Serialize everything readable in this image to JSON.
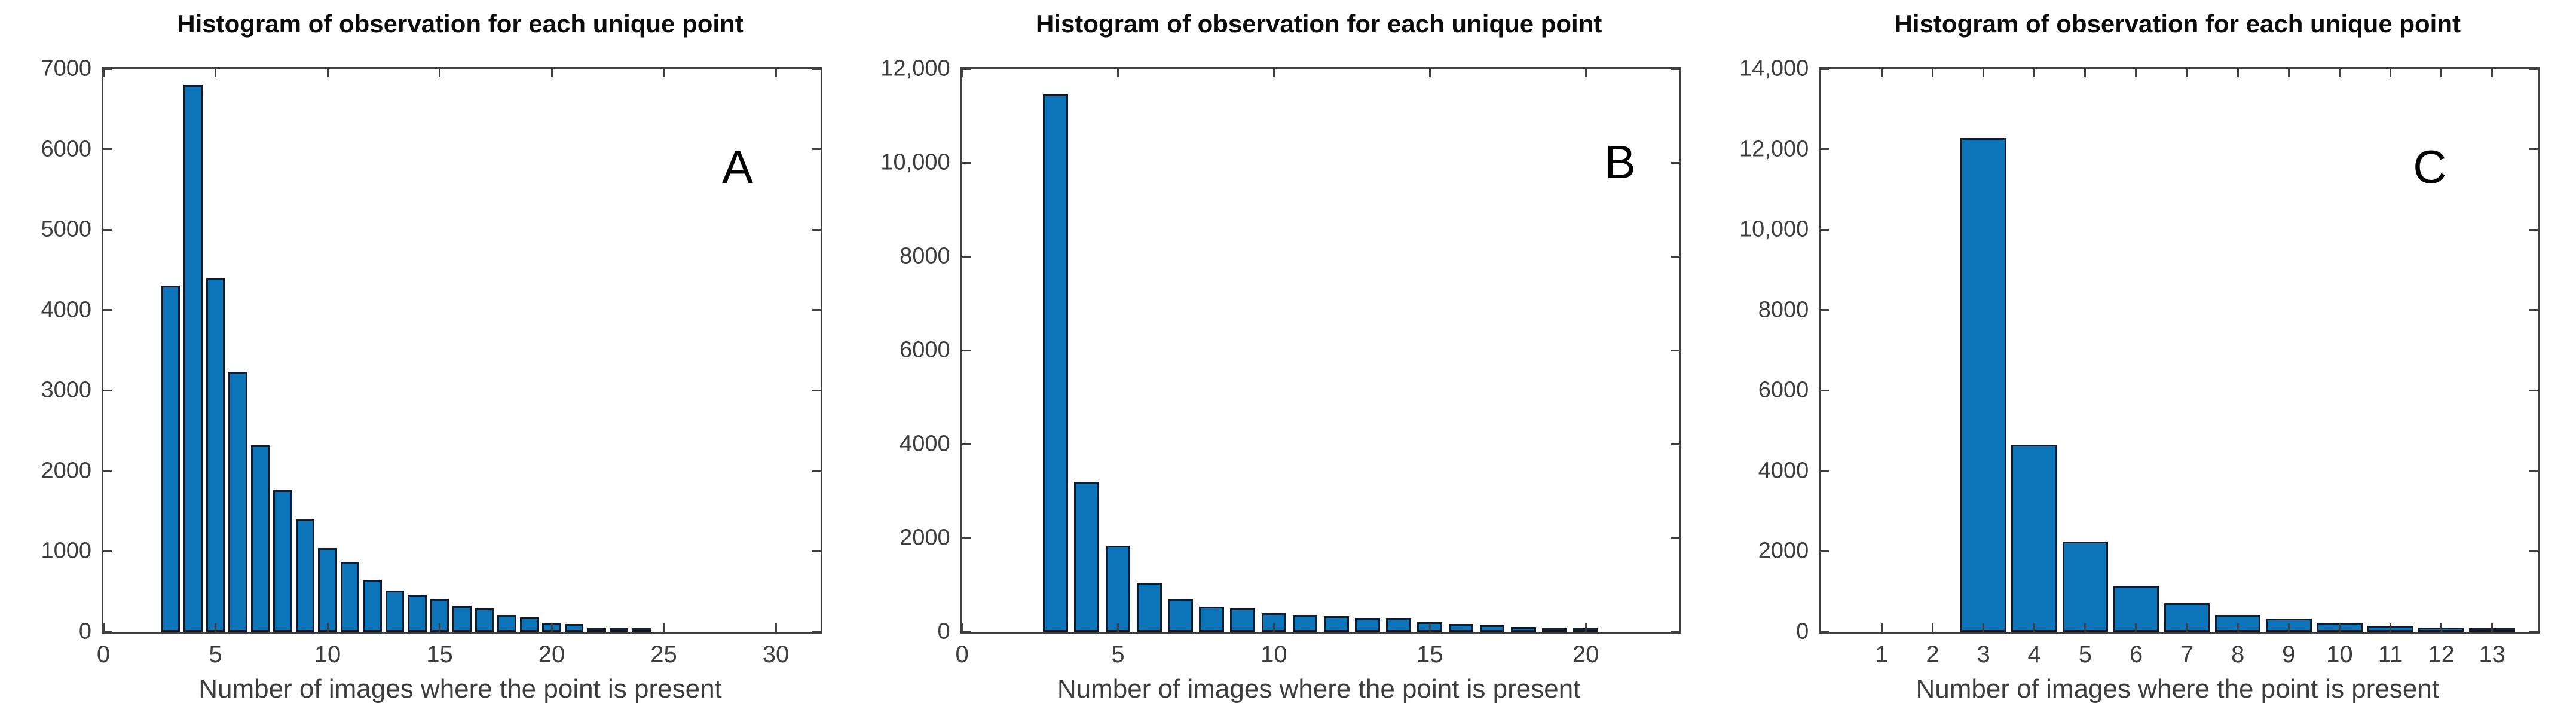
{
  "figure": {
    "background": "#ffffff",
    "shared_title": "Histogram of observation for each unique point",
    "shared_xlabel": "Number of images where the point is present"
  },
  "chart_data": [
    {
      "panel_label": "A",
      "type": "bar",
      "title": "Histogram of observation for each unique point",
      "xlabel": "Number of images where the point is present",
      "ylabel": "",
      "grid": false,
      "legend": null,
      "bar_color": "#0C74B8",
      "bar_edge_color": "#0d1b2a",
      "xlim": [
        0,
        32
      ],
      "ylim": [
        0,
        7000
      ],
      "x_ticks": [
        0,
        5,
        10,
        15,
        20,
        25,
        30
      ],
      "x_tick_labels": [
        "0",
        "5",
        "10",
        "15",
        "20",
        "25",
        "30"
      ],
      "y_ticks": [
        0,
        1000,
        2000,
        3000,
        4000,
        5000,
        6000,
        7000
      ],
      "y_tick_labels": [
        "0",
        "1000",
        "2000",
        "3000",
        "4000",
        "5000",
        "6000",
        "7000"
      ],
      "bar_width": 0.85,
      "x": [
        3,
        4,
        5,
        6,
        7,
        8,
        9,
        10,
        11,
        12,
        13,
        14,
        15,
        16,
        17,
        18,
        19,
        20,
        21,
        22,
        23,
        24
      ],
      "values": [
        4300,
        6800,
        4400,
        3230,
        2320,
        1760,
        1400,
        1040,
        870,
        650,
        510,
        460,
        410,
        320,
        290,
        205,
        180,
        115,
        100,
        45,
        20,
        25
      ]
    },
    {
      "panel_label": "B",
      "type": "bar",
      "title": "Histogram of observation for each unique point",
      "xlabel": "Number of images where the point is present",
      "ylabel": "",
      "grid": false,
      "legend": null,
      "bar_color": "#0C74B8",
      "bar_edge_color": "#0d1b2a",
      "xlim": [
        0,
        23
      ],
      "ylim": [
        0,
        12000
      ],
      "x_ticks": [
        0,
        5,
        10,
        15,
        20
      ],
      "x_tick_labels": [
        "0",
        "5",
        "10",
        "15",
        "20"
      ],
      "y_ticks": [
        0,
        2000,
        4000,
        6000,
        8000,
        10000,
        12000
      ],
      "y_tick_labels": [
        "0",
        "2000",
        "4000",
        "6000",
        "8000",
        "10,000",
        "12,000"
      ],
      "bar_width": 0.8,
      "x": [
        3,
        4,
        5,
        6,
        7,
        8,
        9,
        10,
        11,
        12,
        13,
        14,
        15,
        16,
        17,
        18,
        19,
        20
      ],
      "values": [
        11450,
        3200,
        1830,
        1050,
        700,
        540,
        500,
        400,
        360,
        330,
        290,
        300,
        210,
        170,
        140,
        100,
        25,
        40
      ]
    },
    {
      "panel_label": "C",
      "type": "bar",
      "title": "Histogram of observation for each unique point",
      "xlabel": "Number of images where the point is present",
      "ylabel": "",
      "grid": false,
      "legend": null,
      "bar_color": "#0C74B8",
      "bar_edge_color": "#0d1b2a",
      "xlim": [
        -0.2,
        13.9
      ],
      "ylim": [
        0,
        14000
      ],
      "x_ticks": [
        1,
        2,
        3,
        4,
        5,
        6,
        7,
        8,
        9,
        10,
        11,
        12,
        13
      ],
      "x_tick_labels": [
        "1",
        "2",
        "3",
        "4",
        "5",
        "6",
        "7",
        "8",
        "9",
        "10",
        "11",
        "12",
        "13"
      ],
      "y_ticks": [
        0,
        2000,
        4000,
        6000,
        8000,
        10000,
        12000,
        14000
      ],
      "y_tick_labels": [
        "0",
        "2000",
        "4000",
        "6000",
        "8000",
        "10,000",
        "12,000",
        "14,000"
      ],
      "bar_width": 0.9,
      "x": [
        3,
        4,
        5,
        6,
        7,
        8,
        9,
        10,
        11,
        12,
        13
      ],
      "values": [
        12270,
        4650,
        2250,
        1150,
        720,
        420,
        330,
        220,
        150,
        100,
        50
      ]
    }
  ]
}
